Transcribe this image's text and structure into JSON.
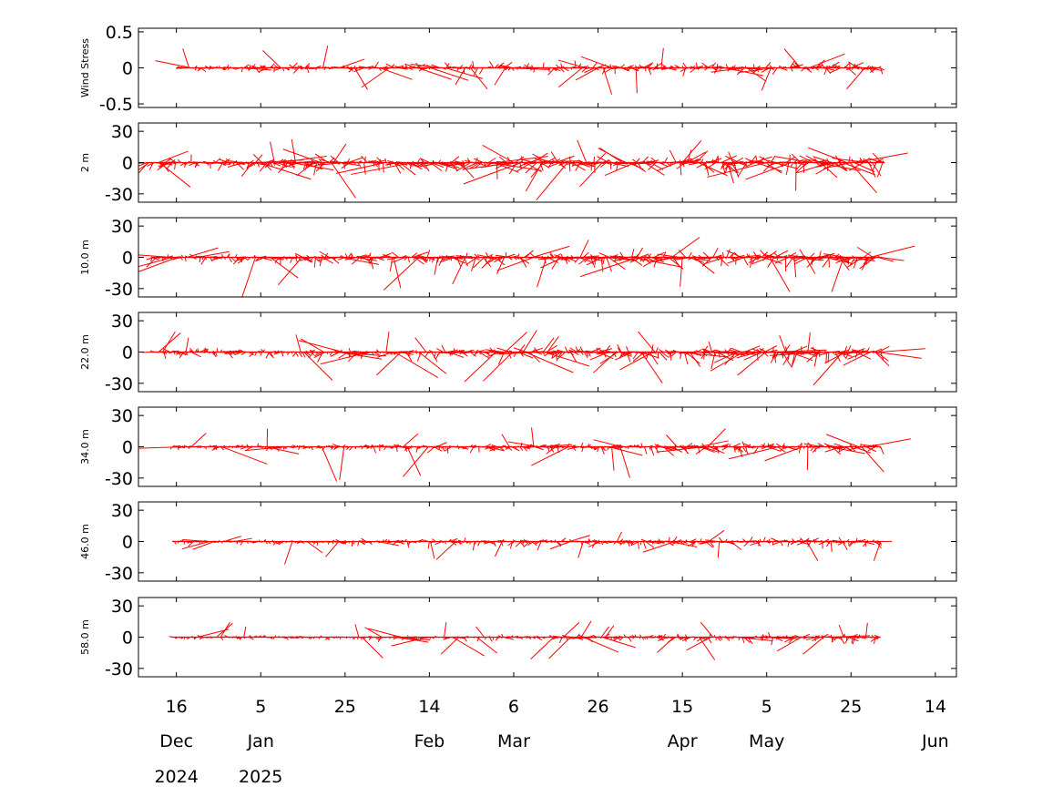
{
  "chart_data": {
    "type": "stick-vector",
    "colors": {
      "series": "#ff0000",
      "axes": "#000000"
    },
    "x_axis": {
      "range": [
        "2024-12-07",
        "2025-06-19"
      ],
      "ticks": [
        {
          "date": "2024-12-16",
          "day": "16",
          "month": "Dec",
          "year": "2024"
        },
        {
          "date": "2025-01-05",
          "day": "5",
          "month": "Jan",
          "year": "2025"
        },
        {
          "date": "2025-01-25",
          "day": "25",
          "month": "",
          "year": ""
        },
        {
          "date": "2025-02-14",
          "day": "14",
          "month": "Feb",
          "year": ""
        },
        {
          "date": "2025-03-06",
          "day": "6",
          "month": "Mar",
          "year": ""
        },
        {
          "date": "2025-03-26",
          "day": "26",
          "month": "",
          "year": ""
        },
        {
          "date": "2025-04-15",
          "day": "15",
          "month": "Apr",
          "year": ""
        },
        {
          "date": "2025-05-05",
          "day": "5",
          "month": "May",
          "year": ""
        },
        {
          "date": "2025-05-25",
          "day": "25",
          "month": "",
          "year": ""
        },
        {
          "date": "2025-06-14",
          "day": "14",
          "month": "Jun",
          "year": ""
        }
      ]
    },
    "panels": [
      {
        "ylabel": "Wind Stress",
        "ylim": [
          -0.55,
          0.55
        ],
        "yticks": [
          0.5,
          0,
          -0.5
        ],
        "ytick_labels": [
          "0.5",
          "0",
          "-0.5"
        ],
        "data_range": [
          "2024-12-16",
          "2025-06-01"
        ],
        "typical_amplitude": 0.08,
        "max_amplitude": 0.38
      },
      {
        "ylabel": "2 m",
        "ylim": [
          -38,
          38
        ],
        "yticks": [
          30,
          0,
          -30
        ],
        "ytick_labels": [
          "30",
          "0",
          "-30"
        ],
        "data_range": [
          "2024-12-09",
          "2025-06-02"
        ],
        "typical_amplitude": 12,
        "max_amplitude": 36
      },
      {
        "ylabel": "10.0 m",
        "ylim": [
          -38,
          38
        ],
        "yticks": [
          30,
          0,
          -30
        ],
        "ytick_labels": [
          "30",
          "0",
          "-30"
        ],
        "data_range": [
          "2024-12-10",
          "2025-06-01"
        ],
        "typical_amplitude": 10,
        "max_amplitude": 36
      },
      {
        "ylabel": "22.0 m",
        "ylim": [
          -38,
          38
        ],
        "yticks": [
          30,
          0,
          -30
        ],
        "ytick_labels": [
          "30",
          "0",
          "-30"
        ],
        "data_range": [
          "2024-12-10",
          "2025-06-01"
        ],
        "typical_amplitude": 9,
        "max_amplitude": 34
      },
      {
        "ylabel": "34.0 m",
        "ylim": [
          -38,
          38
        ],
        "yticks": [
          30,
          0,
          -30
        ],
        "ytick_labels": [
          "30",
          "0",
          "-30"
        ],
        "data_range": [
          "2024-12-15",
          "2025-06-01"
        ],
        "typical_amplitude": 6,
        "max_amplitude": 30
      },
      {
        "ylabel": "46.0 m",
        "ylim": [
          -38,
          38
        ],
        "yticks": [
          30,
          0,
          -30
        ],
        "ytick_labels": [
          "30",
          "0",
          "-30"
        ],
        "data_range": [
          "2024-12-15",
          "2025-06-01"
        ],
        "typical_amplitude": 5,
        "max_amplitude": 20
      },
      {
        "ylabel": "58.0 m",
        "ylim": [
          -38,
          38
        ],
        "yticks": [
          30,
          0,
          -30
        ],
        "ytick_labels": [
          "30",
          "0",
          "-30"
        ],
        "data_range": [
          "2024-12-15",
          "2025-06-01"
        ],
        "typical_amplitude": 4,
        "max_amplitude": 25
      }
    ]
  }
}
